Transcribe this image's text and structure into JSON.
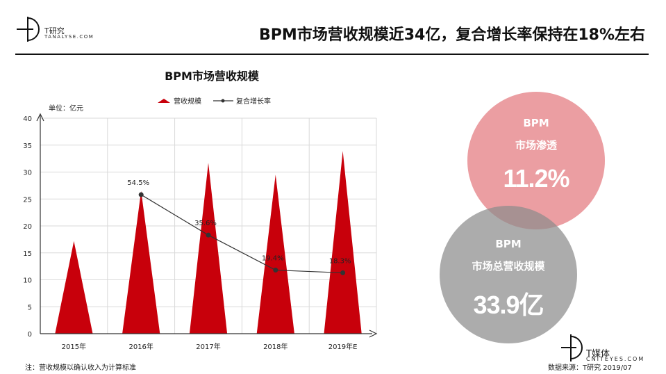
{
  "brand": {
    "top_name": "T研究",
    "top_sub": "TANALYSE.COM",
    "bottom_name": "T媒体",
    "bottom_sub": "CNITEYES.COM"
  },
  "headline": "BPM市场营收规模近34亿，复合增长率保持在18%左右",
  "chart_data": {
    "type": "bar",
    "title": "BPM市场营收规模",
    "unit_label": "单位：亿元",
    "legend": {
      "bar": "营收规模",
      "line": "复合增长率"
    },
    "legend_position": "top",
    "categories": [
      "2015年",
      "2016年",
      "2017年",
      "2018年",
      "2019年E"
    ],
    "series": [
      {
        "name": "营收规模",
        "kind": "bar",
        "color": "#c8000b",
        "values": [
          17.2,
          26.5,
          31.7,
          29.5,
          33.9
        ]
      },
      {
        "name": "复合增长率",
        "kind": "line",
        "color": "#333333",
        "points": [
          {
            "category": "2016年",
            "label": "54.5%",
            "plot_value": 25.8
          },
          {
            "category": "2017年",
            "label": "35.6%",
            "plot_value": 18.3
          },
          {
            "category": "2018年",
            "label": "19.4%",
            "plot_value": 11.8
          },
          {
            "category": "2019年E",
            "label": "18.3%",
            "plot_value": 11.3
          }
        ]
      }
    ],
    "ylim": [
      0,
      40
    ],
    "yticks": [
      0,
      5,
      10,
      15,
      20,
      25,
      30,
      35,
      40
    ],
    "grid": true
  },
  "callouts": {
    "penetration": {
      "line1": "BPM",
      "line2": "市场渗透",
      "value": "11.2%",
      "color": "#e58388"
    },
    "revenue": {
      "line1": "BPM",
      "line2": "市场总营收规模",
      "value": "33.9亿",
      "color": "#8c8c8c"
    }
  },
  "footer": {
    "note": "注：营收规模以确认收入为计算标准",
    "source": "数据来源：T研究 2019/07"
  }
}
